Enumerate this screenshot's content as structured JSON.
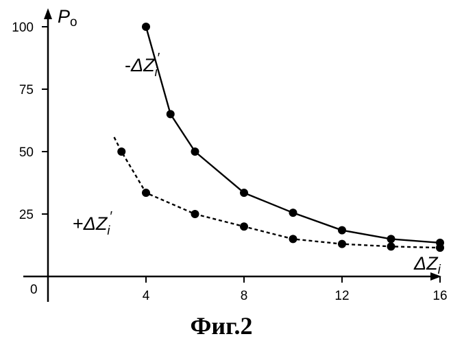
{
  "figure_caption": "Фиг.2",
  "chart_data": {
    "type": "line",
    "title": "",
    "xlabel": "ΔZ",
    "xlabel_sub": "i",
    "ylabel": "P",
    "ylabel_sub": "o",
    "origin_label": "0",
    "xlim": [
      0,
      17.5
    ],
    "ylim": [
      0,
      110
    ],
    "x_ticks": [
      4,
      8,
      12,
      16
    ],
    "y_ticks": [
      25,
      50,
      75,
      100
    ],
    "grid": false,
    "series": [
      {
        "name": "-ΔZi′",
        "label_sign": "-",
        "label_base": "ΔZ",
        "label_sub": "i",
        "label_prime": "′",
        "style": "solid",
        "x": [
          4,
          5,
          6,
          8,
          10,
          12,
          14,
          16
        ],
        "y": [
          100,
          65,
          50,
          33.5,
          25.5,
          18.5,
          15,
          13.5
        ]
      },
      {
        "name": "+ΔZi′",
        "label_sign": "+",
        "label_base": "ΔZ",
        "label_sub": "i",
        "label_prime": "′",
        "style": "dashed",
        "x": [
          3,
          4,
          6,
          8,
          10,
          12,
          14,
          16
        ],
        "y": [
          50,
          33.5,
          25,
          20,
          15,
          13,
          12,
          11.5
        ]
      }
    ]
  }
}
